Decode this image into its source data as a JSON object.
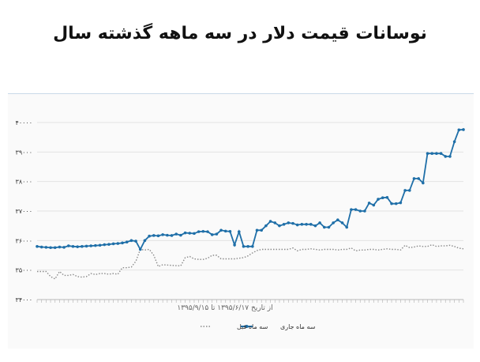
{
  "title": "نوسانات قیمت دلار در سه ماهه گذشته سال",
  "chart_data": {
    "type": "line",
    "xlabel": "از تاریخ ۱۳۹۵/۶/۱۷ تا ۱۳۹۵/۹/۱۵",
    "ylabel": "",
    "ylim": [
      34000,
      40000
    ],
    "yticks": [
      "۳۴۰۰۰",
      "۳۵۰۰۰",
      "۳۶۰۰۰",
      "۳۷۰۰۰",
      "۳۸۰۰۰",
      "۳۹۰۰۰",
      "۴۰۰۰۰"
    ],
    "ytick_values": [
      34000,
      35000,
      36000,
      37000,
      38000,
      39000,
      40000
    ],
    "grid": true,
    "legend_position": "bottom",
    "series": [
      {
        "name": "سه ماه جاری",
        "color": "#1f6fa8",
        "style": "solid-markers",
        "values": [
          35800,
          35780,
          35770,
          35760,
          35760,
          35780,
          35770,
          35820,
          35800,
          35790,
          35800,
          35810,
          35820,
          35830,
          35840,
          35860,
          35870,
          35890,
          35900,
          35920,
          35950,
          36000,
          35980,
          35700,
          36000,
          36150,
          36170,
          36160,
          36200,
          36180,
          36170,
          36220,
          36180,
          36260,
          36250,
          36240,
          36300,
          36310,
          36300,
          36200,
          36220,
          36350,
          36320,
          36310,
          35850,
          36300,
          35800,
          35800,
          35800,
          36350,
          36350,
          36500,
          36650,
          36600,
          36500,
          36550,
          36600,
          36580,
          36530,
          36550,
          36550,
          36550,
          36500,
          36600,
          36450,
          36450,
          36600,
          36700,
          36600,
          36450,
          37050,
          37050,
          37000,
          37000,
          37270,
          37200,
          37400,
          37450,
          37460,
          37250,
          37250,
          37280,
          37700,
          37700,
          38100,
          38100,
          37950,
          38950,
          38950,
          38950,
          38950,
          38850,
          38850,
          39350,
          39750,
          39760
        ]
      },
      {
        "name": "سه ماه قبل",
        "color": "#8a8a8a",
        "style": "dotted",
        "values": [
          34950,
          34950,
          34950,
          34780,
          34700,
          34950,
          34820,
          34820,
          34850,
          34780,
          34760,
          34780,
          34880,
          34850,
          34880,
          34880,
          34860,
          34880,
          34860,
          35080,
          35080,
          35100,
          35300,
          35700,
          35680,
          35700,
          35500,
          35120,
          35180,
          35170,
          35160,
          35150,
          35140,
          35420,
          35460,
          35380,
          35360,
          35360,
          35400,
          35500,
          35500,
          35380,
          35380,
          35380,
          35380,
          35400,
          35420,
          35480,
          35580,
          35660,
          35700,
          35700,
          35700,
          35700,
          35700,
          35700,
          35700,
          35750,
          35650,
          35700,
          35700,
          35720,
          35700,
          35680,
          35700,
          35700,
          35700,
          35680,
          35700,
          35700,
          35750,
          35650,
          35680,
          35680,
          35700,
          35700,
          35680,
          35700,
          35720,
          35700,
          35700,
          35680,
          35840,
          35760,
          35780,
          35820,
          35800,
          35800,
          35860,
          35800,
          35820,
          35820,
          35840,
          35800,
          35740,
          35720
        ]
      }
    ]
  }
}
